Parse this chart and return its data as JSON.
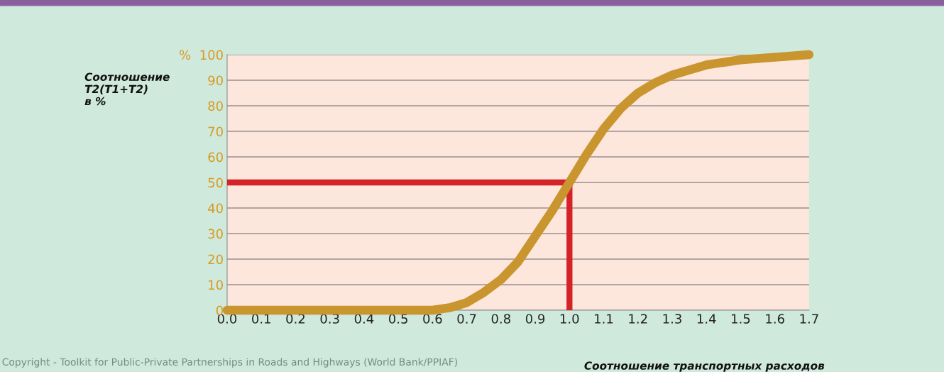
{
  "chart_data": {
    "type": "line",
    "xlabel": "Соотношение транспортных расходов",
    "ylabel": "Соотношение\nT2(T1+T2)\nв %",
    "x": [
      0.0,
      0.1,
      0.2,
      0.3,
      0.4,
      0.5,
      0.6,
      0.65,
      0.7,
      0.75,
      0.8,
      0.85,
      0.9,
      0.95,
      1.0,
      1.05,
      1.1,
      1.15,
      1.2,
      1.25,
      1.3,
      1.35,
      1.4,
      1.5,
      1.6,
      1.7
    ],
    "series": [
      {
        "color": "#c8952e",
        "values": [
          0,
          0,
          0,
          0,
          0,
          0,
          0,
          1,
          3,
          7,
          12,
          19,
          29,
          39,
          50,
          61,
          71,
          79,
          85,
          89,
          92,
          94,
          96,
          98,
          99,
          100
        ]
      }
    ],
    "xlim": [
      0.0,
      1.7
    ],
    "ylim": [
      0,
      100
    ],
    "xticks": [
      {
        "value": 0.0,
        "label": "0.0"
      },
      {
        "value": 0.1,
        "label": "0.1"
      },
      {
        "value": 0.2,
        "label": "0.2"
      },
      {
        "value": 0.3,
        "label": "0.3"
      },
      {
        "value": 0.4,
        "label": "0.4"
      },
      {
        "value": 0.5,
        "label": "0.5"
      },
      {
        "value": 0.6,
        "label": "0.6"
      },
      {
        "value": 0.7,
        "label": "0.7"
      },
      {
        "value": 0.8,
        "label": "0.8"
      },
      {
        "value": 0.9,
        "label": "0.9"
      },
      {
        "value": 1.0,
        "label": "1.0"
      },
      {
        "value": 1.1,
        "label": "1.1"
      },
      {
        "value": 1.2,
        "label": "1.2"
      },
      {
        "value": 1.3,
        "label": "1.3"
      },
      {
        "value": 1.4,
        "label": "1.4"
      },
      {
        "value": 1.5,
        "label": "1.5"
      },
      {
        "value": 1.6,
        "label": "1.6"
      },
      {
        "value": 1.7,
        "label": "1.7"
      }
    ],
    "yticks": [
      0,
      10,
      20,
      30,
      40,
      50,
      60,
      70,
      80,
      90,
      {
        "value": 100,
        "label": "%  100"
      }
    ],
    "grid": "y",
    "line_style": "solid",
    "ref_lines": [
      {
        "axis": "y",
        "value": 50,
        "color": "#d42327"
      },
      {
        "axis": "x",
        "value": 1.0,
        "color": "#d42327"
      }
    ],
    "annotations": [
      "Copyright - Toolkit for Public-Private Partnerships in Roads and Highways (World Bank/PPIAF)"
    ]
  }
}
